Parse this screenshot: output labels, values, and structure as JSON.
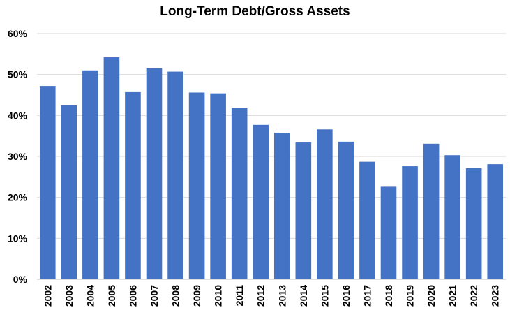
{
  "chart_data": {
    "type": "bar",
    "title": "Long-Term Debt/Gross Assets",
    "xlabel": "",
    "ylabel": "",
    "categories": [
      "2002",
      "2003",
      "2004",
      "2005",
      "2006",
      "2007",
      "2008",
      "2009",
      "2010",
      "2011",
      "2012",
      "2013",
      "2014",
      "2015",
      "2016",
      "2017",
      "2018",
      "2019",
      "2020",
      "2021",
      "2022",
      "2023"
    ],
    "values": [
      47.2,
      42.5,
      51.0,
      54.2,
      45.7,
      51.5,
      50.7,
      45.6,
      45.4,
      41.8,
      37.7,
      35.8,
      33.4,
      36.6,
      33.6,
      28.7,
      22.6,
      27.6,
      33.1,
      30.3,
      27.1,
      28.1
    ],
    "y_ticks": [
      "0%",
      "10%",
      "20%",
      "30%",
      "40%",
      "50%",
      "60%"
    ],
    "ylim": [
      0,
      60
    ],
    "grid": true,
    "legend": "none",
    "colors": {
      "bar": "#4472c4",
      "grid": "#d9d9d9",
      "axis": "#bfbfbf"
    }
  }
}
